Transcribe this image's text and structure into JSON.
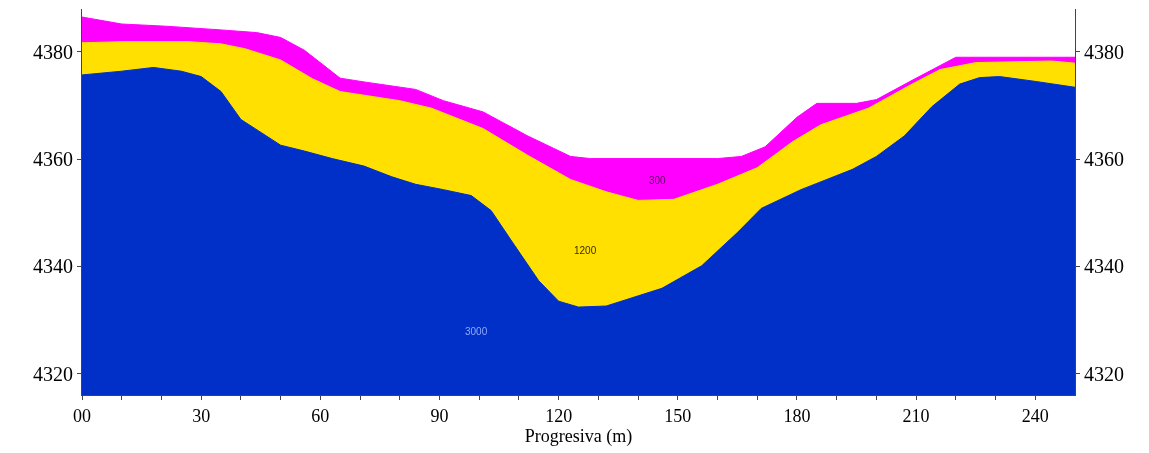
{
  "chart_data": {
    "type": "area",
    "xlabel": "Progresiva (m)",
    "xlim": [
      0,
      250
    ],
    "xticks": [
      {
        "value": 0,
        "label": "00"
      },
      {
        "value": 10,
        "label": null
      },
      {
        "value": 20,
        "label": null
      },
      30,
      {
        "value": 40,
        "label": null
      },
      {
        "value": 50,
        "label": null
      },
      60,
      {
        "value": 70,
        "label": null
      },
      {
        "value": 80,
        "label": null
      },
      90,
      {
        "value": 100,
        "label": null
      },
      {
        "value": 110,
        "label": null
      },
      120,
      {
        "value": 130,
        "label": null
      },
      {
        "value": 140,
        "label": null
      },
      150,
      {
        "value": 160,
        "label": null
      },
      {
        "value": 170,
        "label": null
      },
      180,
      {
        "value": 190,
        "label": null
      },
      {
        "value": 200,
        "label": null
      },
      210,
      {
        "value": 220,
        "label": null
      },
      {
        "value": 230,
        "label": null
      },
      240
    ],
    "ylim": [
      4316,
      4388
    ],
    "yticks": [
      4320,
      4340,
      4360,
      4380
    ],
    "y2lim": [
      4316,
      4388
    ],
    "y2ticks": [
      4320,
      4340,
      4360,
      4380
    ],
    "grid": false,
    "series": [
      {
        "color": "#ff00ff",
        "x": [
          0,
          10,
          21,
          35,
          44,
          50,
          56,
          65,
          71,
          84,
          91,
          101,
          112,
          123,
          128,
          160,
          166,
          172,
          180,
          185,
          195,
          200,
          209,
          220,
          250
        ],
        "values": [
          4386.5,
          4385.2,
          4384.8,
          4384.1,
          4383.6,
          4382.7,
          4380.3,
          4375.1,
          4374.4,
          4373.0,
          4370.9,
          4368.8,
          4364.4,
          4360.5,
          4360.1,
          4360.1,
          4360.5,
          4362.3,
          4367.8,
          4370.4,
          4370.4,
          4371.1,
          4374.7,
          4379.0,
          4379.0
        ]
      },
      {
        "color": "#ffe000",
        "x": [
          0,
          10,
          27,
          35,
          41,
          50,
          58,
          65,
          80,
          88,
          101,
          112,
          123,
          132,
          140,
          149,
          160,
          170,
          179,
          186,
          198,
          209,
          216,
          225,
          244,
          250
        ],
        "values": [
          4381.7,
          4381.9,
          4381.9,
          4381.5,
          4380.6,
          4378.5,
          4375.0,
          4372.6,
          4370.9,
          4369.5,
          4365.7,
          4360.8,
          4356.2,
          4353.9,
          4352.3,
          4352.5,
          4355.3,
          4358.4,
          4363.3,
          4366.4,
          4369.5,
          4374.0,
          4376.7,
          4378.0,
          4378.3,
          4377.9
        ]
      },
      {
        "color": "#0030c8",
        "x": [
          0,
          10,
          18,
          25,
          30,
          35,
          40,
          50,
          56,
          63,
          71,
          78,
          84,
          91,
          98,
          103,
          108,
          115,
          120,
          125,
          132,
          146,
          156,
          165,
          171,
          181,
          194,
          200,
          207,
          214,
          221,
          226,
          231,
          240,
          250
        ],
        "values": [
          4375.7,
          4376.4,
          4377.1,
          4376.4,
          4375.4,
          4372.6,
          4367.4,
          4362.6,
          4361.5,
          4360.1,
          4358.7,
          4356.7,
          4355.3,
          4354.3,
          4353.2,
          4350.4,
          4344.9,
          4337.3,
          4333.5,
          4332.4,
          4332.6,
          4335.9,
          4340.1,
          4346.3,
          4350.8,
          4354.3,
          4358.1,
          4360.5,
          4364.3,
          4369.8,
          4374.0,
          4375.2,
          4375.4,
          4374.5,
          4373.4
        ]
      }
    ],
    "annotations": [
      "300",
      "1200",
      "3000"
    ]
  }
}
